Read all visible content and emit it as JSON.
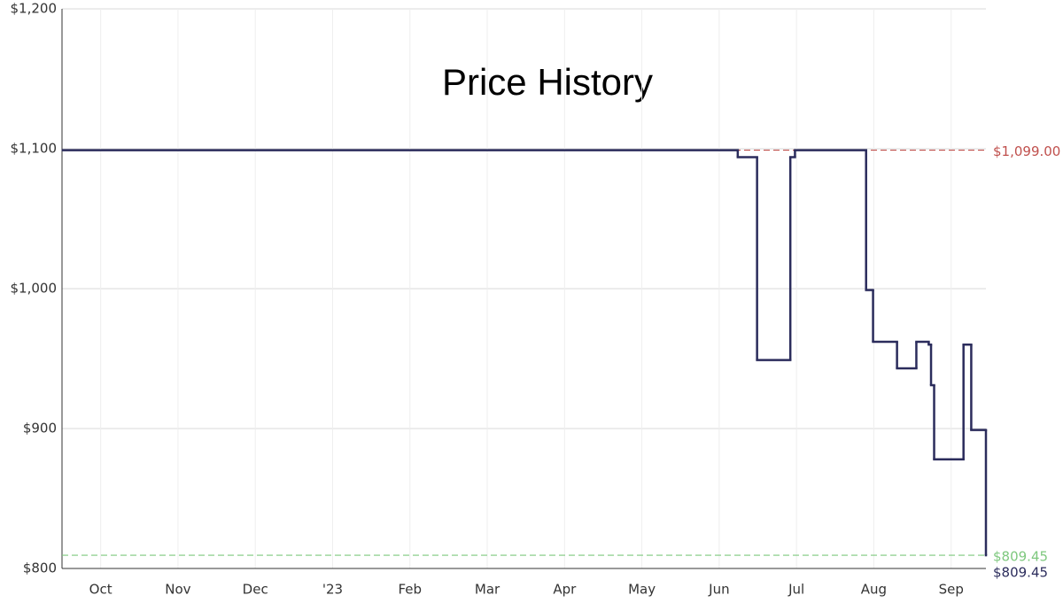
{
  "chart_data": {
    "type": "step",
    "title": "Price History",
    "x": [
      0.51,
      9.24,
      9.49,
      9.92,
      9.98,
      10.9,
      10.99,
      11.3,
      11.55,
      11.71,
      11.74,
      11.78,
      12.16,
      12.26,
      12.45
    ],
    "series": [
      {
        "color": "#2b2c5c",
        "values": [
          1099,
          1094,
          949,
          1094,
          1099,
          999,
          962,
          943,
          962,
          960,
          931,
          878,
          960,
          899,
          809.45
        ]
      }
    ],
    "xlim": [
      0.5,
      12.45
    ],
    "xticks": [
      {
        "value": 1,
        "label": "Oct"
      },
      {
        "value": 2,
        "label": "Nov"
      },
      {
        "value": 3,
        "label": "Dec"
      },
      {
        "value": 4,
        "label": "'23"
      },
      {
        "value": 5,
        "label": "Feb"
      },
      {
        "value": 6,
        "label": "Mar"
      },
      {
        "value": 7,
        "label": "Apr"
      },
      {
        "value": 8,
        "label": "May"
      },
      {
        "value": 9,
        "label": "Jun"
      },
      {
        "value": 10,
        "label": "Jul"
      },
      {
        "value": 11,
        "label": "Aug"
      },
      {
        "value": 12,
        "label": "Sep"
      }
    ],
    "ylim": [
      800,
      1200
    ],
    "yticks": [
      {
        "value": 800,
        "label": "$800"
      },
      {
        "value": 900,
        "label": "$900"
      },
      {
        "value": 1000,
        "label": "$1,000"
      },
      {
        "value": 1100,
        "label": "$1,100"
      },
      {
        "value": 1200,
        "label": "$1,200"
      }
    ],
    "grid": true,
    "reference_lines": [
      {
        "value": 1099,
        "label": "$1,099.00",
        "color": "#c0504d"
      },
      {
        "value": 809.45,
        "label": "$809.45",
        "color": "#7ec87e"
      }
    ],
    "current_price": {
      "value": 809.45,
      "label": "$809.45",
      "color": "#2b2c5c"
    }
  }
}
